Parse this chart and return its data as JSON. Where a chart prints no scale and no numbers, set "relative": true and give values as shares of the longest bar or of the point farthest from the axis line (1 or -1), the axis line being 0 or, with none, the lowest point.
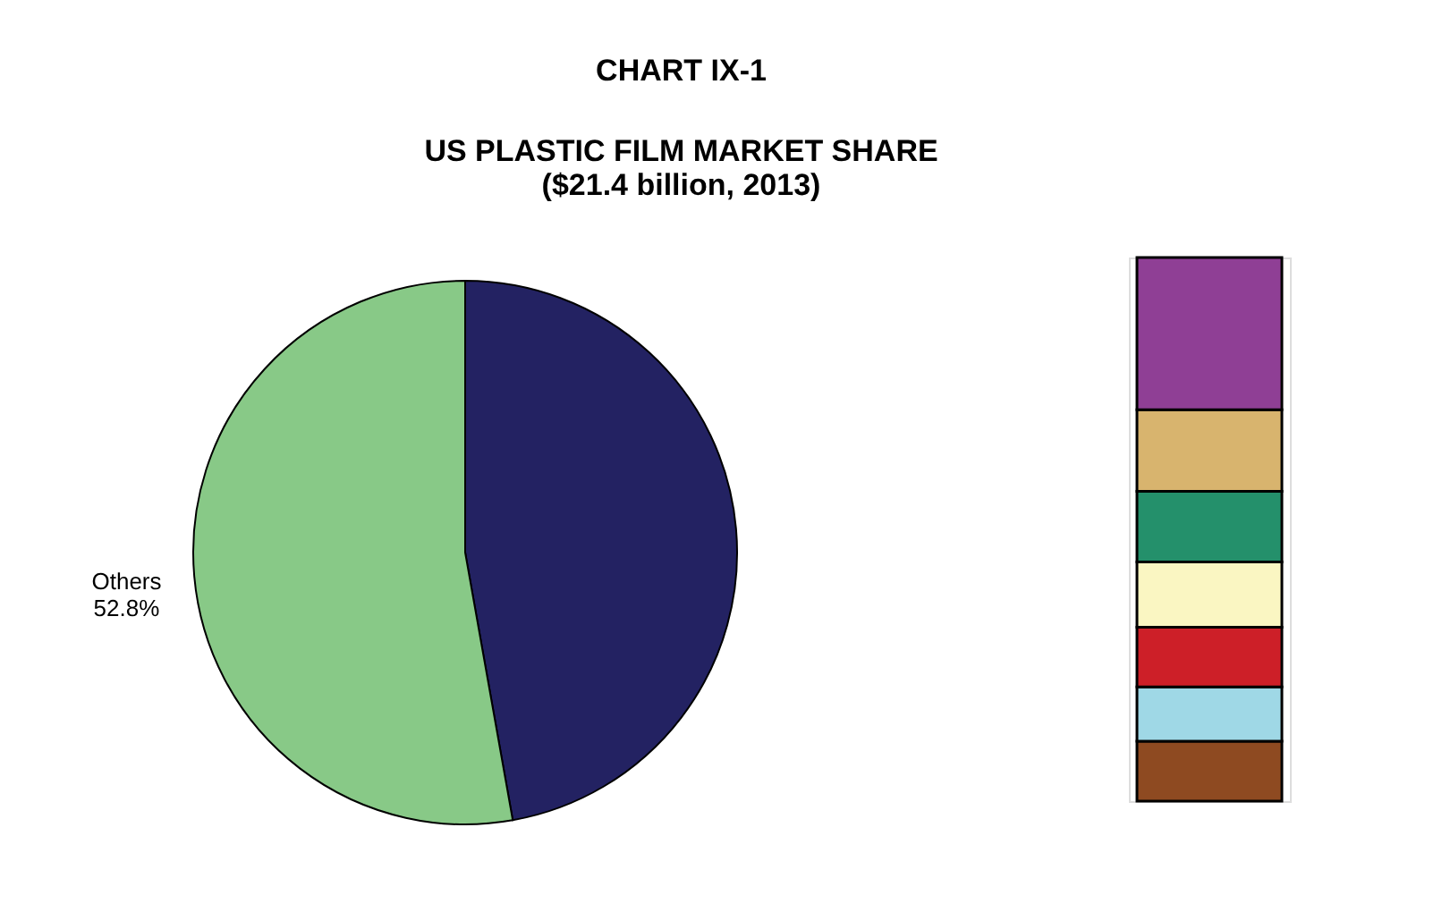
{
  "chart_data": [
    {
      "type": "pie",
      "title": "CHART IX-1",
      "subtitle": "US PLASTIC FILM MARKET SHARE\n($21.4 billion, 2013)",
      "categories": [
        null,
        "Others"
      ],
      "values": [
        47.2,
        52.8
      ],
      "colors": [
        "#232262",
        "#88c987"
      ],
      "value_labels": [
        null,
        "52.8%"
      ],
      "legend": false
    },
    {
      "type": "bar",
      "stacked": true,
      "relative": true,
      "categories": [
        null
      ],
      "legend": false,
      "series": [
        {
          "color": "#8e4a21",
          "values": [
            0.11
          ]
        },
        {
          "color": "#9fd8e6",
          "values": [
            0.1
          ]
        },
        {
          "color": "#cd1f28",
          "values": [
            0.11
          ]
        },
        {
          "color": "#faf6c2",
          "values": [
            0.12
          ]
        },
        {
          "color": "#24906b",
          "values": [
            0.13
          ]
        },
        {
          "color": "#d8b46e",
          "values": [
            0.15
          ]
        },
        {
          "color": "#8f3f95",
          "values": [
            0.28
          ]
        }
      ]
    }
  ]
}
